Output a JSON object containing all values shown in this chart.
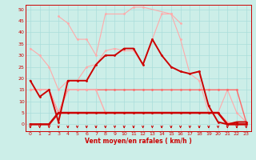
{
  "xlabel": "Vent moyen/en rafales ( km/h )",
  "bg_color": "#cceee8",
  "grid_color": "#aaddda",
  "x_ticks": [
    0,
    1,
    2,
    3,
    4,
    5,
    6,
    7,
    8,
    9,
    10,
    11,
    12,
    13,
    14,
    15,
    16,
    17,
    18,
    19,
    20,
    21,
    22,
    23
  ],
  "ylim": [
    -3,
    52
  ],
  "yticks": [
    0,
    5,
    10,
    15,
    20,
    25,
    30,
    35,
    40,
    45,
    50
  ],
  "line_light1_x": [
    0,
    1,
    2,
    3,
    4,
    5,
    6,
    7,
    8,
    9,
    10,
    11,
    12,
    13,
    14,
    15,
    16,
    17,
    18,
    19,
    20,
    21,
    22,
    23
  ],
  "line_light1_y": [
    33,
    30,
    25,
    15,
    19,
    19,
    25,
    26,
    32,
    33,
    32,
    32,
    26,
    37,
    48,
    48,
    37,
    22,
    19,
    5,
    5,
    15,
    5,
    1
  ],
  "line_light2_x": [
    3,
    4,
    5,
    6,
    7,
    8,
    10,
    11,
    12,
    15,
    16
  ],
  "line_light2_y": [
    47,
    44,
    37,
    37,
    30,
    48,
    48,
    51,
    51,
    48,
    44
  ],
  "line_dark_x": [
    0,
    1,
    2,
    3,
    4,
    5,
    6,
    7,
    8,
    9,
    10,
    11,
    12,
    13,
    14,
    15,
    16,
    17,
    18,
    19,
    20,
    21,
    22,
    23
  ],
  "line_dark_y": [
    19,
    12,
    15,
    1,
    19,
    19,
    19,
    26,
    30,
    30,
    33,
    33,
    26,
    37,
    30,
    25,
    23,
    22,
    23,
    8,
    1,
    0,
    1,
    1
  ],
  "line_med1_x": [
    0,
    1,
    2,
    3,
    4,
    5,
    6,
    7,
    8,
    9,
    10,
    11,
    12,
    13,
    14,
    15,
    16,
    17,
    18,
    19,
    20,
    21,
    22,
    23
  ],
  "line_med1_y": [
    15,
    15,
    15,
    5,
    15,
    15,
    15,
    15,
    15,
    15,
    15,
    15,
    15,
    15,
    15,
    15,
    15,
    15,
    15,
    15,
    15,
    15,
    15,
    1
  ],
  "line_med2_x": [
    0,
    1,
    2,
    3,
    4,
    5,
    6,
    7,
    8,
    9,
    10,
    11,
    12,
    13,
    14,
    15,
    16,
    17,
    18,
    19,
    20,
    21,
    22,
    23
  ],
  "line_med2_y": [
    15,
    15,
    15,
    5,
    15,
    15,
    15,
    15,
    5,
    5,
    5,
    5,
    5,
    5,
    5,
    5,
    5,
    5,
    5,
    5,
    5,
    1,
    0,
    0
  ],
  "line_flat_x": [
    0,
    1,
    2,
    3,
    4,
    5,
    6,
    7,
    8,
    9,
    10,
    11,
    12,
    13,
    14,
    15,
    16,
    17,
    18,
    19,
    20,
    21,
    22,
    23
  ],
  "line_flat_y": [
    0,
    0,
    0,
    5,
    5,
    5,
    5,
    5,
    5,
    5,
    5,
    5,
    5,
    5,
    5,
    5,
    5,
    5,
    5,
    5,
    5,
    0,
    0,
    0
  ],
  "color_light": "#ffaaaa",
  "color_dark": "#cc0000",
  "color_med": "#ff6666",
  "marker_size": 2.0,
  "lw_light": 0.8,
  "lw_dark": 1.4,
  "lw_med": 1.0,
  "lw_flat": 1.8
}
